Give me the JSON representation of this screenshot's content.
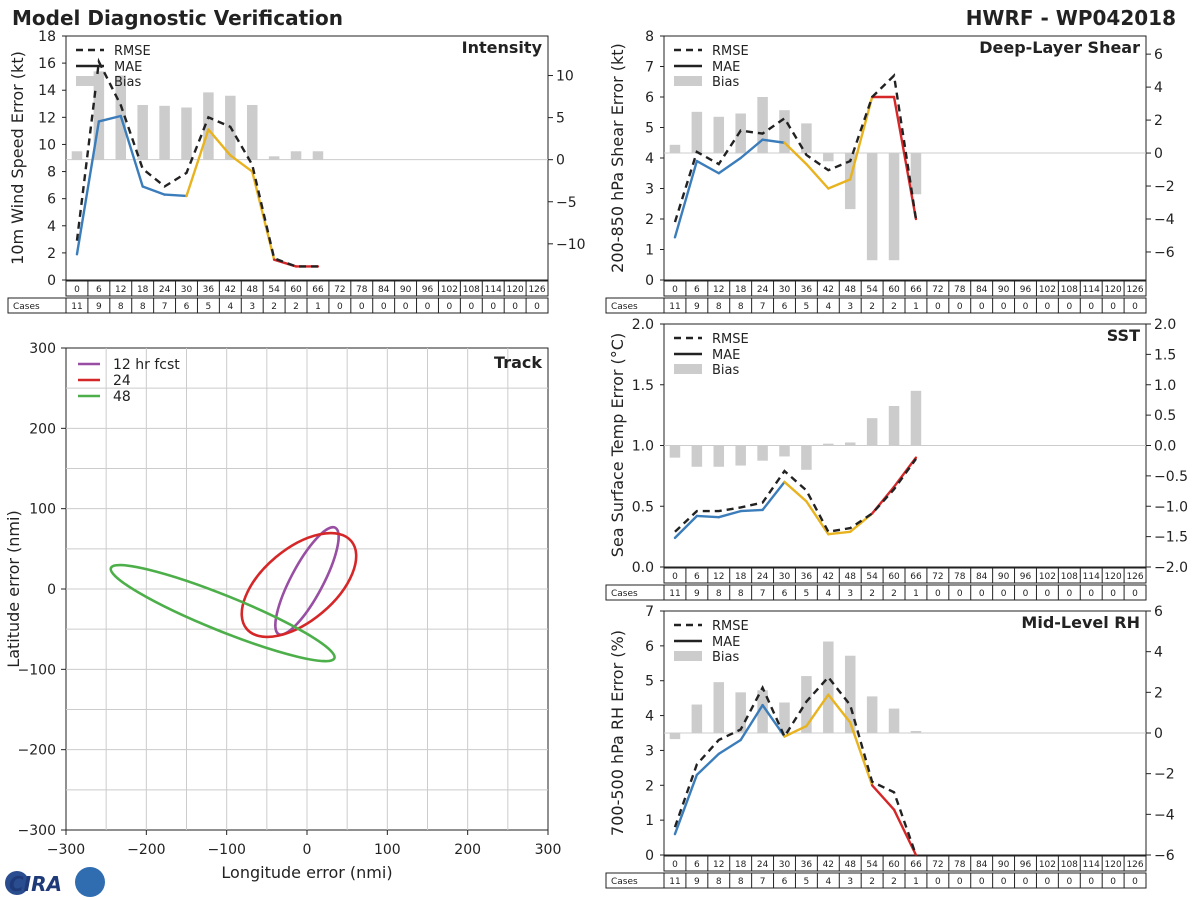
{
  "header": {
    "title": "Model Diagnostic Verification",
    "storm": "HWRF - WP042018"
  },
  "legend": {
    "rmse": "RMSE",
    "mae": "MAE",
    "bias": "Bias"
  },
  "cases_label": "Cases",
  "colors": {
    "early": "#3b7dbb",
    "mid": "#e8b31e",
    "late": "#d62728",
    "rmse": "#222222",
    "bias": "#cccccc",
    "grid": "#cccccc"
  },
  "logo": {
    "text": "CIRA"
  },
  "hours": [
    "0",
    "6",
    "12",
    "18",
    "24",
    "30",
    "36",
    "42",
    "48",
    "54",
    "60",
    "66",
    "72",
    "78",
    "84",
    "90",
    "96",
    "102",
    "108",
    "114",
    "120",
    "126"
  ],
  "cases": [
    "11",
    "9",
    "8",
    "8",
    "7",
    "6",
    "5",
    "4",
    "3",
    "2",
    "2",
    "1",
    "0",
    "0",
    "0",
    "0",
    "0",
    "0",
    "0",
    "0",
    "0",
    "0"
  ],
  "chart_data": [
    {
      "id": "intensity",
      "type": "line",
      "title": "Intensity",
      "ylabel": "10m Wind Speed Error (kt)",
      "ylim": [
        0,
        18
      ],
      "yticks": [
        "0",
        "2",
        "4",
        "6",
        "8",
        "10",
        "12",
        "14",
        "16",
        "18"
      ],
      "y2lim": [
        -14.3,
        14.7
      ],
      "y2ticks": [
        "−10",
        "−5",
        "0",
        "5",
        "10"
      ],
      "x": [
        0,
        6,
        12,
        18,
        24,
        30,
        36,
        42,
        48,
        54,
        60,
        66
      ],
      "rmse": [
        2.9,
        16.1,
        12.9,
        8.2,
        6.9,
        7.9,
        12.0,
        11.3,
        8.5,
        1.6,
        1.0,
        1.0
      ],
      "mae": [
        1.9,
        11.7,
        12.1,
        6.9,
        6.3,
        6.2,
        11.1,
        9.2,
        8.0,
        1.5,
        1.0,
        1.0
      ],
      "bias": [
        1.0,
        10.5,
        10.0,
        6.5,
        6.4,
        6.2,
        8.0,
        7.6,
        6.5,
        0.4,
        1.0,
        1.0
      ]
    },
    {
      "id": "shear",
      "type": "line",
      "title": "Deep-Layer Shear",
      "ylabel": "200-850 hPa Shear Error (kt)",
      "ylim": [
        0,
        8
      ],
      "yticks": [
        "0",
        "1",
        "2",
        "3",
        "4",
        "5",
        "6",
        "7",
        "8"
      ],
      "y2lim": [
        -7.7,
        7.1
      ],
      "y2ticks": [
        "−6",
        "−4",
        "−2",
        "0",
        "2",
        "4",
        "6"
      ],
      "x": [
        0,
        6,
        12,
        18,
        24,
        30,
        36,
        42,
        48,
        54,
        60,
        66
      ],
      "rmse": [
        1.9,
        4.2,
        3.8,
        4.9,
        4.8,
        5.3,
        4.1,
        3.6,
        3.9,
        6.0,
        6.7,
        2.0
      ],
      "mae": [
        1.4,
        3.9,
        3.5,
        4.0,
        4.6,
        4.5,
        3.8,
        3.0,
        3.3,
        6.0,
        6.0,
        2.0
      ],
      "bias": [
        0.5,
        2.5,
        2.2,
        2.4,
        3.4,
        2.6,
        1.8,
        -0.5,
        -3.4,
        -6.5,
        -6.5,
        -2.5
      ]
    },
    {
      "id": "sst",
      "type": "line",
      "title": "SST",
      "ylabel": "Sea Surface Temp Error (°C)",
      "ylim": [
        0,
        2.0
      ],
      "yticks": [
        "0.0",
        "0.5",
        "1.0",
        "1.5",
        "2.0"
      ],
      "y2lim": [
        -2.0,
        2.0
      ],
      "y2ticks": [
        "−2.0",
        "−1.5",
        "−1.0",
        "−0.5",
        "0.0",
        "0.5",
        "1.0",
        "1.5",
        "2.0"
      ],
      "x": [
        0,
        6,
        12,
        18,
        24,
        30,
        36,
        42,
        48,
        54,
        60,
        66
      ],
      "rmse": [
        0.29,
        0.46,
        0.46,
        0.49,
        0.53,
        0.79,
        0.63,
        0.29,
        0.32,
        0.44,
        0.64,
        0.89
      ],
      "mae": [
        0.24,
        0.42,
        0.41,
        0.46,
        0.47,
        0.7,
        0.54,
        0.27,
        0.29,
        0.44,
        0.66,
        0.9
      ],
      "bias": [
        -0.2,
        -0.35,
        -0.35,
        -0.33,
        -0.25,
        -0.18,
        -0.4,
        0.03,
        0.05,
        0.45,
        0.65,
        0.9
      ]
    },
    {
      "id": "rh",
      "type": "line",
      "title": "Mid-Level RH",
      "ylabel": "700-500 hPa RH Error (%)",
      "ylim": [
        0,
        7
      ],
      "yticks": [
        "0",
        "1",
        "2",
        "3",
        "4",
        "5",
        "6",
        "7"
      ],
      "y2lim": [
        -6.0,
        6.0
      ],
      "y2ticks": [
        "−6",
        "−4",
        "−2",
        "0",
        "2",
        "4",
        "6"
      ],
      "x": [
        0,
        6,
        12,
        18,
        24,
        30,
        36,
        42,
        48,
        54,
        60,
        66
      ],
      "rmse": [
        0.8,
        2.6,
        3.3,
        3.6,
        4.8,
        3.4,
        4.4,
        5.1,
        4.3,
        2.1,
        1.8,
        0.0
      ],
      "mae": [
        0.6,
        2.3,
        2.9,
        3.3,
        4.3,
        3.4,
        3.7,
        4.6,
        3.8,
        2.0,
        1.3,
        0.0
      ],
      "bias": [
        -0.3,
        1.4,
        2.5,
        2.0,
        2.1,
        1.5,
        2.8,
        4.5,
        3.8,
        1.8,
        1.2,
        0.1
      ]
    },
    {
      "id": "track",
      "type": "line",
      "title": "Track",
      "xlabel": "Longitude error (nmi)",
      "ylabel": "Latitude error (nmi)",
      "xlim": [
        -300,
        300
      ],
      "ylim": [
        -300,
        300
      ],
      "xticks": [
        "−300",
        "−200",
        "−100",
        "0",
        "100",
        "200",
        "300"
      ],
      "yticks": [
        "−300",
        "−200",
        "−100",
        "0",
        "100",
        "200",
        "300"
      ],
      "series": [
        {
          "name": "12 hr fcst",
          "color": "#984ea3",
          "cx": 0,
          "cy": 10,
          "rx": 75,
          "ry": 20,
          "angle": -62
        },
        {
          "name": "24",
          "color": "#d62728",
          "cx": -10,
          "cy": 5,
          "rx": 85,
          "ry": 45,
          "angle": -40
        },
        {
          "name": "48",
          "color": "#4daf4a",
          "cx": -105,
          "cy": -30,
          "rx": 150,
          "ry": 22,
          "angle": 22
        }
      ]
    }
  ]
}
